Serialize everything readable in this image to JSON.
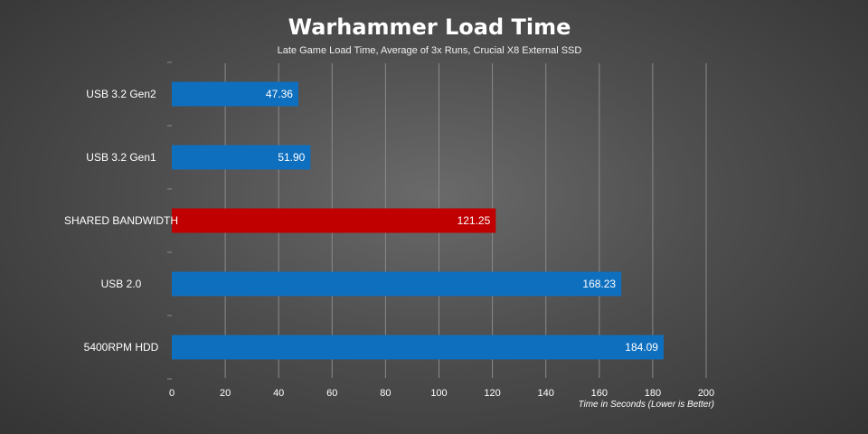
{
  "chart_data": {
    "type": "bar",
    "orientation": "horizontal",
    "title": "Warhammer Load Time",
    "subtitle": "Late Game Load Time, Average of 3x Runs, Crucial X8 External SSD",
    "xlabel": "Time in Seconds (Lower is Better)",
    "categories": [
      "USB 3.2 Gen2",
      "USB 3.2 Gen1",
      "SHARED BANDWIDTH",
      "USB 2.0",
      "5400RPM HDD"
    ],
    "values": [
      47.36,
      51.9,
      121.25,
      168.23,
      184.09
    ],
    "value_labels": [
      "47.36",
      "51.90",
      "121.25",
      "168.23",
      "184.09"
    ],
    "colors": [
      "#0f6fbf",
      "#0f6fbf",
      "#c00000",
      "#0f6fbf",
      "#0f6fbf"
    ],
    "xlim": [
      0,
      200
    ],
    "xticks": [
      0,
      20,
      40,
      60,
      80,
      100,
      120,
      140,
      160,
      180,
      200
    ],
    "grid": true,
    "legend": "none"
  }
}
